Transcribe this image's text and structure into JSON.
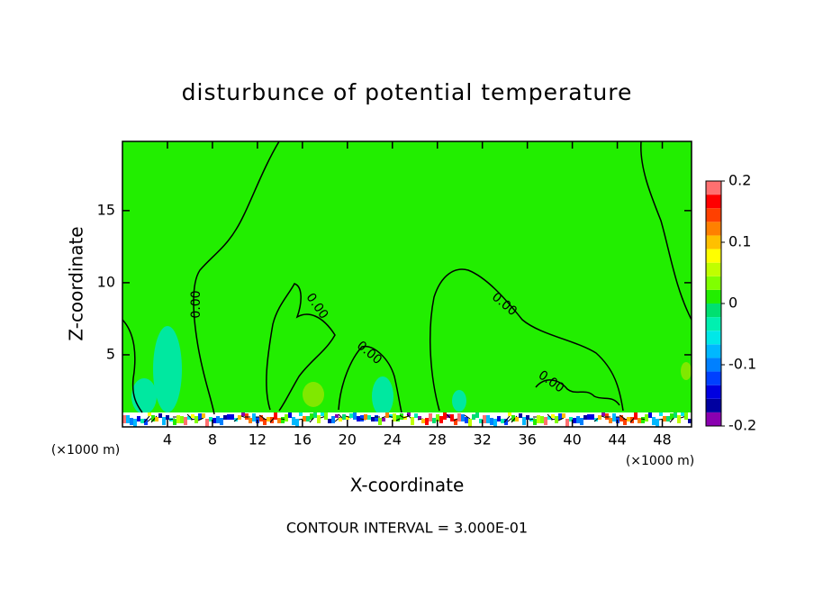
{
  "chart_data": {
    "type": "contour",
    "title": "disturbunce of potential temperature",
    "xlabel": "X-coordinate",
    "ylabel": "Z-coordinate",
    "x_unit_label": "(×1000 m)",
    "annotation": "CONTOUR INTERVAL = 3.000E-01",
    "contour_label": "0.00",
    "xlim": [
      0,
      50.6
    ],
    "xticks": [
      4,
      8,
      12,
      16,
      20,
      24,
      28,
      32,
      36,
      40,
      44,
      48
    ],
    "ylim": [
      0,
      19.8
    ],
    "yticks": [
      5,
      10,
      15
    ],
    "colorbar": {
      "lim": [
        -0.2,
        0.2
      ],
      "ticks": [
        -0.2,
        -0.1,
        0,
        0.1,
        0.2
      ],
      "colors": [
        "#8a00b0",
        "#0000a0",
        "#0000e0",
        "#0040ff",
        "#0080ff",
        "#00b8ff",
        "#00e8e8",
        "#00f0b0",
        "#00e070",
        "#22ee00",
        "#80ff00",
        "#c0ff00",
        "#ffff00",
        "#ffc000",
        "#ff8000",
        "#ff4000",
        "#ff0000",
        "#ff7070"
      ]
    }
  }
}
